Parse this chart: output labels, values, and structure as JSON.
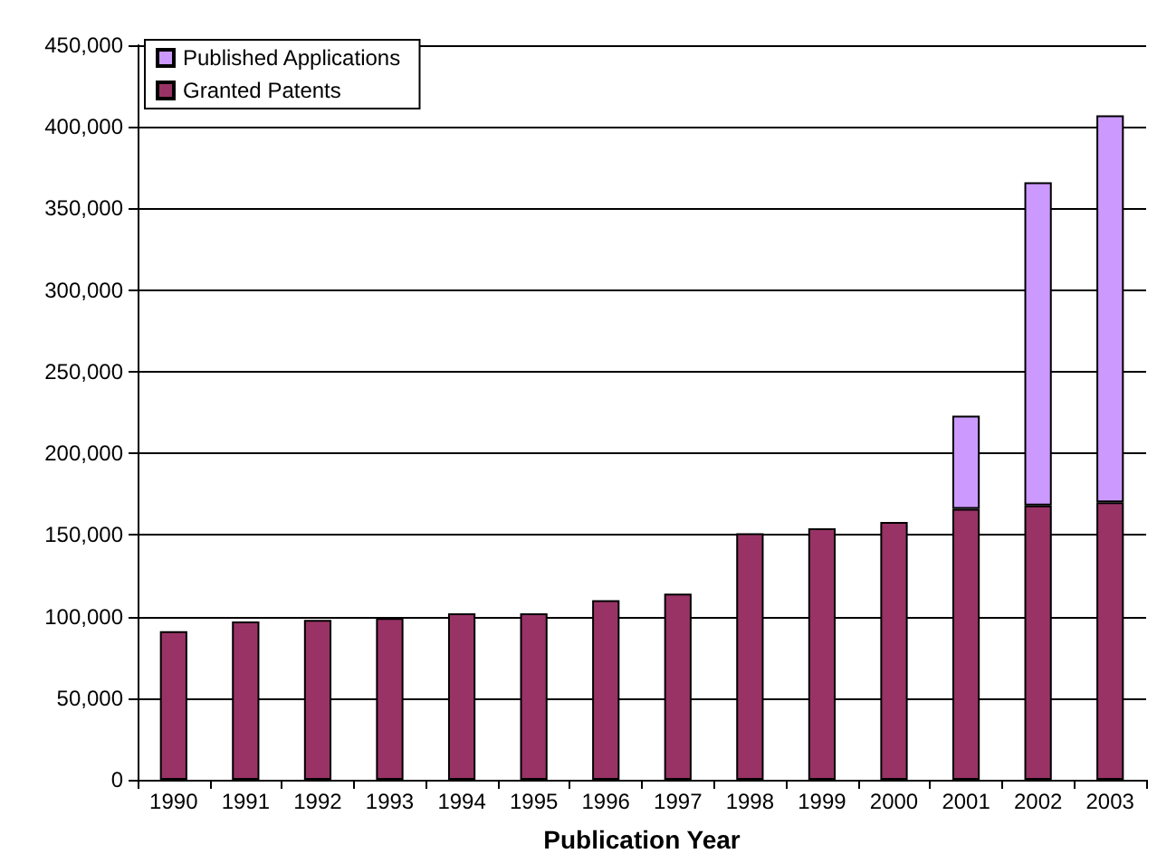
{
  "chart_data": {
    "type": "bar",
    "xlabel": "Publication Year",
    "stacked": true,
    "categories": [
      "1990",
      "1991",
      "1992",
      "1993",
      "1994",
      "1995",
      "1996",
      "1997",
      "1998",
      "1999",
      "2000",
      "2001",
      "2002",
      "2003"
    ],
    "series": [
      {
        "name": "Granted Patents",
        "color": "#993366",
        "values": [
          91000,
          97000,
          98000,
          99000,
          102000,
          102000,
          110000,
          114000,
          151000,
          154000,
          158000,
          166000,
          168000,
          170000
        ]
      },
      {
        "name": "Published Applications",
        "color": "#cc99ff",
        "values": [
          null,
          null,
          null,
          null,
          null,
          null,
          null,
          null,
          null,
          null,
          null,
          57000,
          198000,
          237000
        ]
      }
    ],
    "ylim": [
      0,
      450000
    ],
    "yticks": [
      0,
      {
        "value": 50000,
        "label": "50,000"
      },
      {
        "value": 100000,
        "label": "100,000"
      },
      {
        "value": 150000,
        "label": "150,000"
      },
      {
        "value": 200000,
        "label": "200,000"
      },
      {
        "value": 250000,
        "label": "250,000"
      },
      {
        "value": 300000,
        "label": "300,000"
      },
      {
        "value": 350000,
        "label": "350,000"
      },
      {
        "value": 400000,
        "label": "400,000"
      },
      {
        "value": 450000,
        "label": "450,000"
      }
    ],
    "grid": "y",
    "legend": "top left"
  }
}
